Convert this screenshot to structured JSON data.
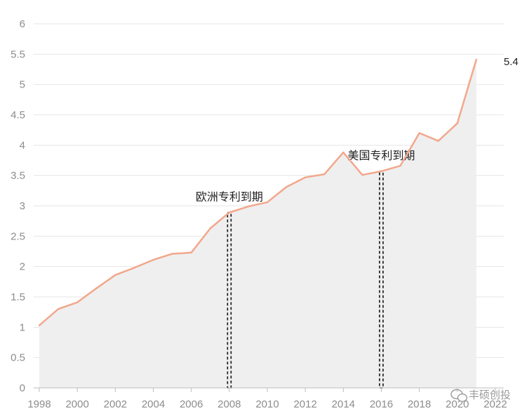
{
  "chart_data": {
    "type": "area",
    "x": [
      1998,
      1999,
      2000,
      2001,
      2002,
      2003,
      2004,
      2005,
      2006,
      2007,
      2008,
      2009,
      2010,
      2011,
      2012,
      2013,
      2014,
      2015,
      2016,
      2017,
      2018,
      2019,
      2020,
      2021
    ],
    "series": [
      {
        "values": [
          1.03,
          1.3,
          1.41,
          1.64,
          1.86,
          1.98,
          2.11,
          2.21,
          2.23,
          2.63,
          2.89,
          2.99,
          3.06,
          3.31,
          3.47,
          3.52,
          3.88,
          3.51,
          3.57,
          3.66,
          4.2,
          4.07,
          4.36,
          5.41
        ]
      }
    ],
    "ylim": [
      0,
      6
    ],
    "xlim": [
      1998,
      2022
    ],
    "yticks": [
      "0",
      "0.5",
      "1",
      "1.5",
      "2",
      "2.5",
      "3",
      "3.5",
      "4",
      "4.5",
      "5",
      "5.5",
      "6"
    ],
    "xticks": [
      "1998",
      "2000",
      "2002",
      "2004",
      "2006",
      "2008",
      "2010",
      "2012",
      "2014",
      "2016",
      "2018",
      "2020",
      "2022"
    ],
    "grid": true,
    "end_label": "5.4",
    "annotations": [
      {
        "text": "欧洲专利到期",
        "x": 2008
      },
      {
        "text": "美国专利到期",
        "x": 2016
      }
    ],
    "colors": {
      "line": "#f2a78c",
      "area": "#efefef",
      "grid": "#e6e6e6",
      "annotation_line": "#111111"
    }
  },
  "watermark": {
    "text": "丰硕创投",
    "icon": "wechat-icon"
  }
}
